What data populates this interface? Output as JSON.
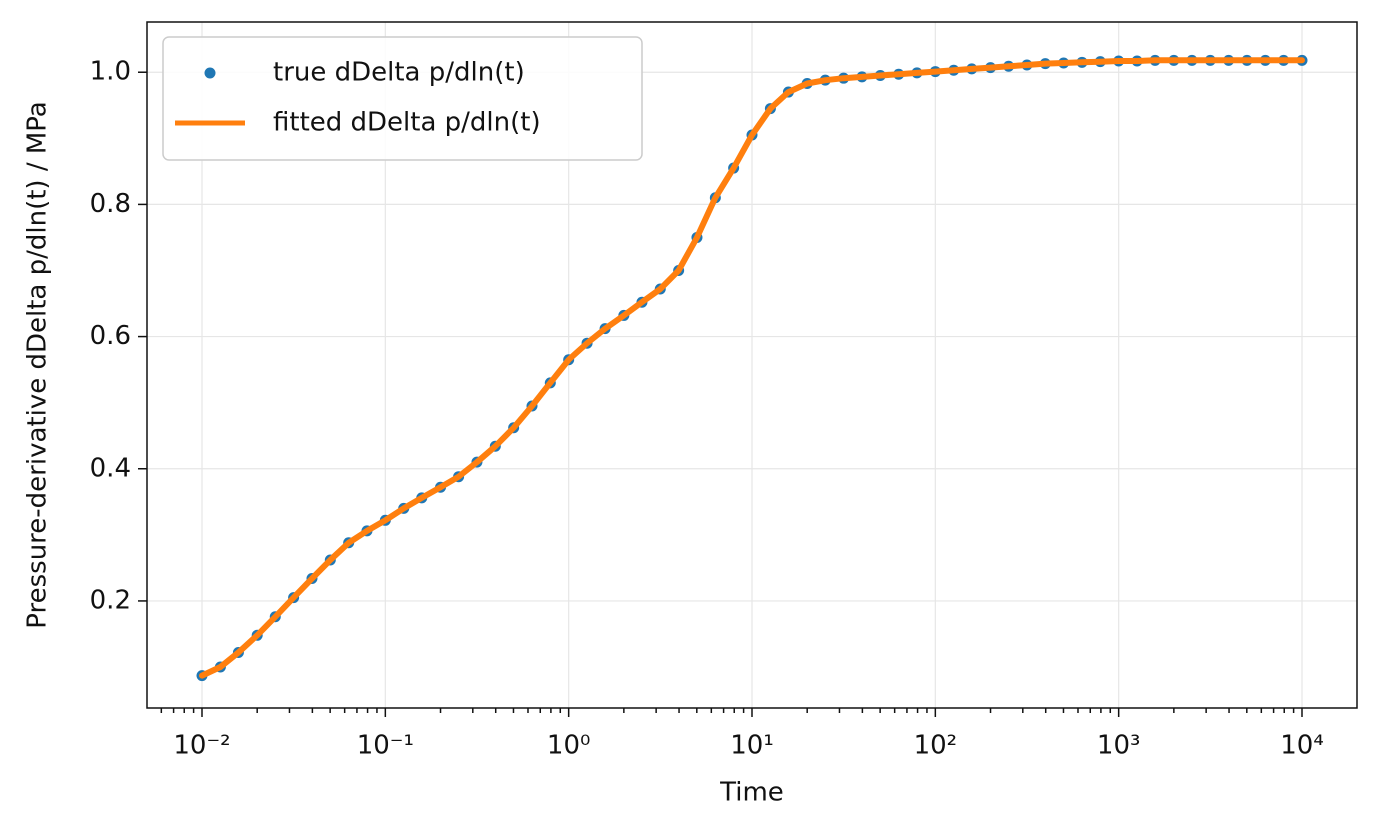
{
  "chart_data": {
    "type": "scatter-line",
    "xlabel": "Time",
    "ylabel": "Pressure-derivative dDelta p/dln(t) / MPa",
    "xscale": "log",
    "grid": true,
    "legend": "upper left",
    "xlim": [
      0.005012,
      19953
    ],
    "ylim": [
      0.038,
      1.076
    ],
    "xticks": [
      {
        "value": 0.01,
        "label": "10⁻²"
      },
      {
        "value": 0.1,
        "label": "10⁻¹"
      },
      {
        "value": 1,
        "label": "10⁰"
      },
      {
        "value": 10,
        "label": "10¹"
      },
      {
        "value": 100,
        "label": "10²"
      },
      {
        "value": 1000,
        "label": "10³"
      },
      {
        "value": 10000,
        "label": "10⁴"
      }
    ],
    "xminorticks": [
      0.006,
      0.007,
      0.008,
      0.009,
      0.02,
      0.03,
      0.04,
      0.05,
      0.06,
      0.07,
      0.08,
      0.09,
      0.2,
      0.3,
      0.4,
      0.5,
      0.6,
      0.7,
      0.8,
      0.9,
      2,
      3,
      4,
      5,
      6,
      7,
      8,
      9,
      20,
      30,
      40,
      50,
      60,
      70,
      80,
      90,
      200,
      300,
      400,
      500,
      600,
      700,
      800,
      900,
      2000,
      3000,
      4000,
      5000,
      6000,
      7000,
      8000,
      9000
    ],
    "yticks": [
      0.2,
      0.4,
      0.6,
      0.8,
      {
        "value": 1,
        "label": "1.0"
      }
    ],
    "x": [
      0.01,
      0.0126,
      0.0158,
      0.02,
      0.0251,
      0.0316,
      0.0398,
      0.0501,
      0.0631,
      0.0794,
      0.1,
      0.126,
      0.158,
      0.2,
      0.251,
      0.316,
      0.398,
      0.501,
      0.631,
      0.794,
      1,
      1.26,
      1.58,
      2,
      2.51,
      3.16,
      3.98,
      5.01,
      6.31,
      7.94,
      10,
      12.6,
      15.8,
      20,
      25.1,
      31.6,
      39.8,
      50.1,
      63.1,
      79.4,
      100,
      126,
      158,
      200,
      251,
      316,
      398,
      501,
      631,
      794,
      1000,
      1260,
      1580,
      2000,
      2510,
      3160,
      3980,
      5010,
      6310,
      7940,
      10000
    ],
    "series": [
      {
        "name": "true dDelta p/dln(t)",
        "color": "#1f77b4",
        "mark": "dots",
        "values": [
          0.087,
          0.1,
          0.122,
          0.148,
          0.176,
          0.205,
          0.234,
          0.262,
          0.288,
          0.306,
          0.322,
          0.34,
          0.356,
          0.372,
          0.388,
          0.41,
          0.434,
          0.462,
          0.495,
          0.53,
          0.565,
          0.59,
          0.612,
          0.632,
          0.652,
          0.672,
          0.7,
          0.75,
          0.81,
          0.855,
          0.905,
          0.945,
          0.97,
          0.983,
          0.988,
          0.991,
          0.993,
          0.995,
          0.997,
          0.999,
          1.001,
          1.003,
          1.005,
          1.007,
          1.009,
          1.011,
          1.013,
          1.014,
          1.015,
          1.016,
          1.017,
          1.017,
          1.018,
          1.018,
          1.018,
          1.018,
          1.018,
          1.018,
          1.018,
          1.018,
          1.018
        ]
      },
      {
        "name": "fitted dDelta p/dln(t)",
        "color": "#ff7f0e",
        "mark": "line",
        "values": [
          0.087,
          0.1,
          0.122,
          0.148,
          0.176,
          0.205,
          0.234,
          0.262,
          0.288,
          0.306,
          0.322,
          0.34,
          0.356,
          0.372,
          0.388,
          0.41,
          0.434,
          0.462,
          0.495,
          0.53,
          0.565,
          0.59,
          0.612,
          0.632,
          0.652,
          0.672,
          0.7,
          0.75,
          0.81,
          0.855,
          0.905,
          0.945,
          0.97,
          0.983,
          0.988,
          0.991,
          0.993,
          0.995,
          0.997,
          0.999,
          1.001,
          1.003,
          1.005,
          1.007,
          1.009,
          1.011,
          1.013,
          1.014,
          1.015,
          1.016,
          1.017,
          1.017,
          1.018,
          1.018,
          1.018,
          1.018,
          1.018,
          1.018,
          1.018,
          1.018,
          1.018
        ]
      }
    ]
  }
}
